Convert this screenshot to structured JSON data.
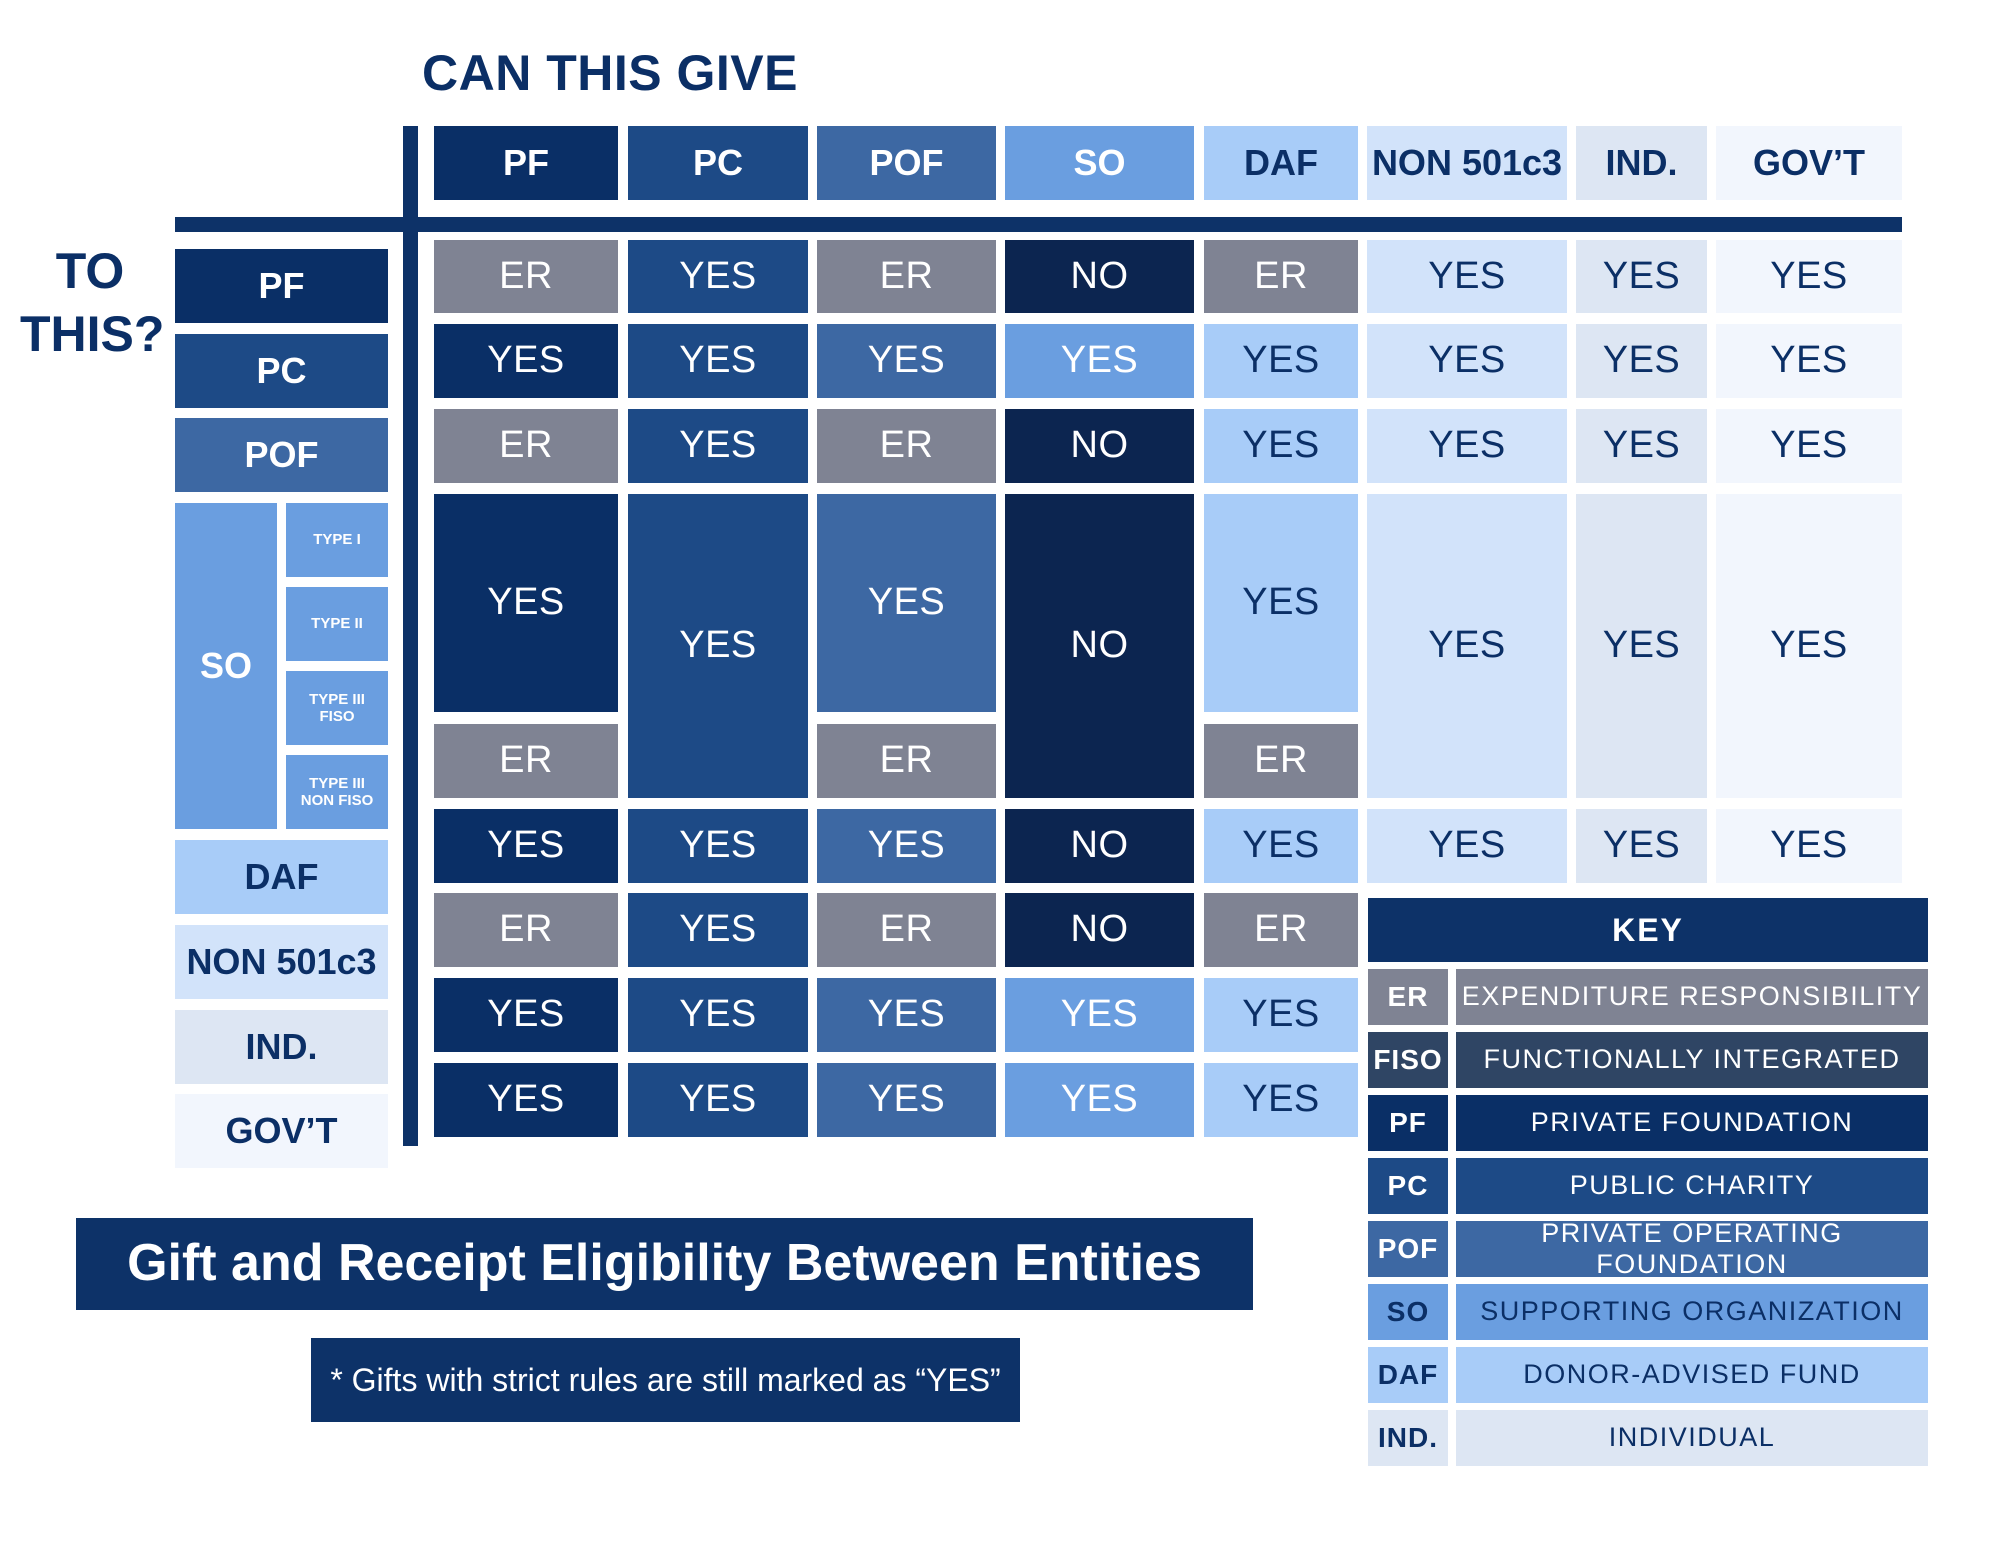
{
  "titles": {
    "can_give": "CAN THIS GIVE",
    "to_this_1": "TO",
    "to_this_2": "THIS?"
  },
  "columns": [
    {
      "label": "PF",
      "color": "#0a2f66",
      "text_color": "#ffffff"
    },
    {
      "label": "PC",
      "color": "#1d4a86",
      "text_color": "#ffffff"
    },
    {
      "label": "POF",
      "color": "#3d68a3",
      "text_color": "#ffffff"
    },
    {
      "label": "SO",
      "color": "#6a9ee0",
      "text_color": "#ffffff"
    },
    {
      "label": "DAF",
      "color": "#a8ccf8",
      "text_color": "#0b2f66"
    },
    {
      "label": "NON 501c3",
      "color": "#d2e3fa",
      "text_color": "#0b2f66"
    },
    {
      "label": "IND.",
      "color": "#dde6f3",
      "text_color": "#0b2f66"
    },
    {
      "label": "GOV’T",
      "color": "#f2f6fd",
      "text_color": "#0b2f66"
    }
  ],
  "rows": [
    {
      "label": "PF",
      "color": "#0a2f66",
      "text_color": "#ffffff"
    },
    {
      "label": "PC",
      "color": "#1d4a86",
      "text_color": "#ffffff"
    },
    {
      "label": "POF",
      "color": "#3d68a3",
      "text_color": "#ffffff"
    },
    {
      "label": "SO",
      "color": "#6a9ee0",
      "text_color": "#ffffff",
      "subtypes": [
        "TYPE I",
        "TYPE II",
        "TYPE III FISO",
        "TYPE III NON FISO"
      ]
    },
    {
      "label": "DAF",
      "color": "#a8ccf8",
      "text_color": "#0b2f66"
    },
    {
      "label": "NON 501c3",
      "color": "#d2e3fa",
      "text_color": "#0b2f66"
    },
    {
      "label": "IND.",
      "color": "#dde6f3",
      "text_color": "#0b2f66"
    },
    {
      "label": "GOV’T",
      "color": "#f2f6fd",
      "text_color": "#0b2f66"
    }
  ],
  "matrix": [
    [
      "ER",
      "YES",
      "ER",
      "NO",
      "ER",
      "YES",
      "YES",
      "YES"
    ],
    [
      "YES",
      "YES",
      "YES",
      "YES",
      "YES",
      "YES",
      "YES",
      "YES"
    ],
    [
      "ER",
      "YES",
      "ER",
      "NO",
      "YES",
      "YES",
      "YES",
      "YES"
    ],
    [
      "YES",
      "YES",
      "YES",
      "NO",
      "YES",
      "YES",
      "YES",
      "YES"
    ],
    [
      "YES",
      "YES",
      "YES",
      "NO",
      "YES",
      "YES",
      "YES",
      "YES"
    ],
    [
      "ER",
      "YES",
      "ER",
      "NO",
      "ER"
    ],
    [
      "YES",
      "YES",
      "YES",
      "YES",
      "YES"
    ],
    [
      "YES",
      "YES",
      "YES",
      "YES",
      "YES"
    ]
  ],
  "so_split_values": [
    "ER",
    null,
    "ER",
    null,
    "ER"
  ],
  "value_colors": {
    "ER": "#7f8393",
    "NO": "#0c2550",
    "FISO": "#2f4564"
  },
  "key": {
    "title": "KEY",
    "items": [
      {
        "abbr": "ER",
        "desc": "EXPENDITURE RESPONSIBILITY",
        "color": "#7f8393",
        "text_color": "#ffffff"
      },
      {
        "abbr": "FISO",
        "desc": "FUNCTIONALLY INTEGRATED",
        "color": "#2f4564",
        "text_color": "#ffffff"
      },
      {
        "abbr": "PF",
        "desc": "PRIVATE FOUNDATION",
        "color": "#0a2f66",
        "text_color": "#ffffff"
      },
      {
        "abbr": "PC",
        "desc": "PUBLIC CHARITY",
        "color": "#1d4a86",
        "text_color": "#ffffff"
      },
      {
        "abbr": "POF",
        "desc": "PRIVATE OPERATING FOUNDATION",
        "color": "#3d68a3",
        "text_color": "#ffffff"
      },
      {
        "abbr": "SO",
        "desc": "SUPPORTING ORGANIZATION",
        "color": "#6a9ee0",
        "text_color": "#0b2f66"
      },
      {
        "abbr": "DAF",
        "desc": "DONOR-ADVISED FUND",
        "color": "#a8ccf8",
        "text_color": "#0b2f66"
      },
      {
        "abbr": "IND.",
        "desc": "INDIVIDUAL",
        "color": "#dde6f3",
        "text_color": "#0b2f66"
      }
    ]
  },
  "main_title": "Gift and Receipt Eligibility Between Entities",
  "note": "* Gifts with strict rules are still marked as “YES”"
}
